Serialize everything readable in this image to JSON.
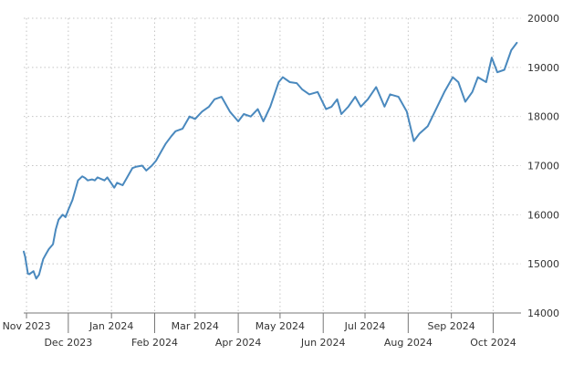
{
  "chart_data": {
    "type": "line",
    "title": "",
    "xlabel": "",
    "ylabel": "",
    "y_axis_position": "right",
    "ylim": [
      14000,
      20000
    ],
    "yticks": [
      {
        "value": 14000,
        "label": "14000"
      },
      {
        "value": 15000,
        "label": "15000"
      },
      {
        "value": 16000,
        "label": "16000"
      },
      {
        "value": 17000,
        "label": "17000"
      },
      {
        "value": 18000,
        "label": "18000"
      },
      {
        "value": 19000,
        "label": "19000"
      },
      {
        "value": 20000,
        "label": "20000"
      }
    ],
    "xlim": [
      "2023-10-30",
      "2024-10-21"
    ],
    "xticks": [
      {
        "value": "2023-11-01",
        "label": "Nov 2023"
      },
      {
        "value": "2023-12-01",
        "label": "Dec 2023"
      },
      {
        "value": "2024-01-01",
        "label": "Jan 2024"
      },
      {
        "value": "2024-02-01",
        "label": "Feb 2024"
      },
      {
        "value": "2024-03-01",
        "label": "Mar 2024"
      },
      {
        "value": "2024-04-01",
        "label": "Apr 2024"
      },
      {
        "value": "2024-05-01",
        "label": "May 2024"
      },
      {
        "value": "2024-06-01",
        "label": "Jun 2024"
      },
      {
        "value": "2024-07-01",
        "label": "Jul 2024"
      },
      {
        "value": "2024-08-01",
        "label": "Aug 2024"
      },
      {
        "value": "2024-09-01",
        "label": "Sep 2024"
      },
      {
        "value": "2024-10-01",
        "label": "Oct 2024"
      }
    ],
    "grid": true,
    "line_color": "#4a89be",
    "series": [
      {
        "x": [
          "2023-10-30",
          "2023-10-31",
          "2023-11-02",
          "2023-11-03",
          "2023-11-06",
          "2023-11-08",
          "2023-11-10",
          "2023-11-13",
          "2023-11-15",
          "2023-11-17",
          "2023-11-20",
          "2023-11-22",
          "2023-11-24",
          "2023-11-27",
          "2023-11-29",
          "2023-12-01",
          "2023-12-04",
          "2023-12-06",
          "2023-12-08",
          "2023-12-11",
          "2023-12-13",
          "2023-12-15",
          "2023-12-18",
          "2023-12-20",
          "2023-12-22",
          "2023-12-27",
          "2023-12-29",
          "2024-01-03",
          "2024-01-05",
          "2024-01-09",
          "2024-01-12",
          "2024-01-16",
          "2024-01-19",
          "2024-01-23",
          "2024-01-26",
          "2024-01-30",
          "2024-02-02",
          "2024-02-06",
          "2024-02-09",
          "2024-02-13",
          "2024-02-16",
          "2024-02-21",
          "2024-02-26",
          "2024-03-01",
          "2024-03-06",
          "2024-03-11",
          "2024-03-15",
          "2024-03-20",
          "2024-03-26",
          "2024-04-01",
          "2024-04-05",
          "2024-04-10",
          "2024-04-15",
          "2024-04-19",
          "2024-04-24",
          "2024-04-30",
          "2024-05-03",
          "2024-05-08",
          "2024-05-13",
          "2024-05-17",
          "2024-05-22",
          "2024-05-28",
          "2024-06-03",
          "2024-06-07",
          "2024-06-11",
          "2024-06-14",
          "2024-06-19",
          "2024-06-24",
          "2024-06-28",
          "2024-07-03",
          "2024-07-09",
          "2024-07-15",
          "2024-07-19",
          "2024-07-25",
          "2024-07-31",
          "2024-08-05",
          "2024-08-09",
          "2024-08-15",
          "2024-08-21",
          "2024-08-27",
          "2024-09-02",
          "2024-09-06",
          "2024-09-11",
          "2024-09-16",
          "2024-09-20",
          "2024-09-26",
          "2024-09-30",
          "2024-10-04",
          "2024-10-09",
          "2024-10-14",
          "2024-10-18"
        ],
        "values": [
          15250,
          15150,
          14800,
          14790,
          14850,
          14700,
          14780,
          15100,
          15200,
          15300,
          15400,
          15700,
          15900,
          16000,
          15950,
          16100,
          16300,
          16500,
          16700,
          16780,
          16750,
          16700,
          16720,
          16700,
          16760,
          16700,
          16760,
          16550,
          16650,
          16600,
          16750,
          16950,
          16980,
          17000,
          16900,
          17000,
          17100,
          17300,
          17450,
          17600,
          17700,
          17750,
          18000,
          17950,
          18100,
          18200,
          18350,
          18400,
          18100,
          17900,
          18050,
          18000,
          18150,
          17900,
          18200,
          18700,
          18800,
          18700,
          18680,
          18550,
          18450,
          18500,
          18150,
          18200,
          18350,
          18050,
          18200,
          18400,
          18200,
          18350,
          18600,
          18200,
          18450,
          18400,
          18100,
          17500,
          17650,
          17800,
          18150,
          18500,
          18800,
          18700,
          18300,
          18500,
          18800,
          18700,
          19200,
          18900,
          18950,
          19350,
          19500
        ],
        "note": "approximate series shape read off the line"
      }
    ]
  }
}
